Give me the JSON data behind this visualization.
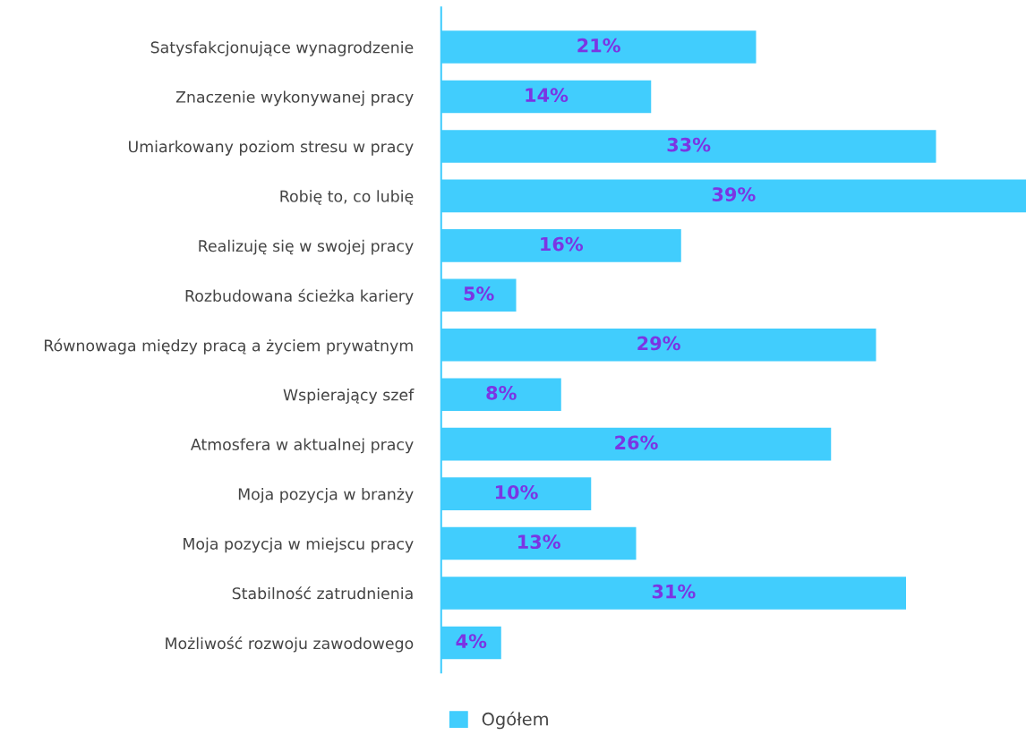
{
  "chart_data": {
    "type": "bar",
    "orientation": "horizontal",
    "categories": [
      "Satysfakcjonujące wynagrodzenie",
      "Znaczenie wykonywanej pracy",
      "Umiarkowany poziom stresu w pracy",
      "Robię to, co lubię",
      "Realizuję się w swojej pracy",
      "Rozbudowana ścieżka kariery",
      "Równowaga między pracą a życiem prywatnym",
      "Wspierający szef",
      "Atmosfera w aktualnej pracy",
      "Moja pozycja w branży",
      "Moja pozycja w miejscu pracy",
      "Stabilność zatrudnienia",
      "Możliwość rozwoju zawodowego"
    ],
    "series": [
      {
        "name": "Ogółem",
        "color": "#41cdfd",
        "values": [
          21,
          14,
          33,
          39,
          16,
          5,
          29,
          8,
          26,
          10,
          13,
          31,
          4
        ],
        "value_labels": [
          "21%",
          "14%",
          "33%",
          "39%",
          "16%",
          "5%",
          "29%",
          "8%",
          "26%",
          "10%",
          "13%",
          "31%",
          "4%"
        ]
      }
    ],
    "legend": "bottom",
    "grid": false
  }
}
